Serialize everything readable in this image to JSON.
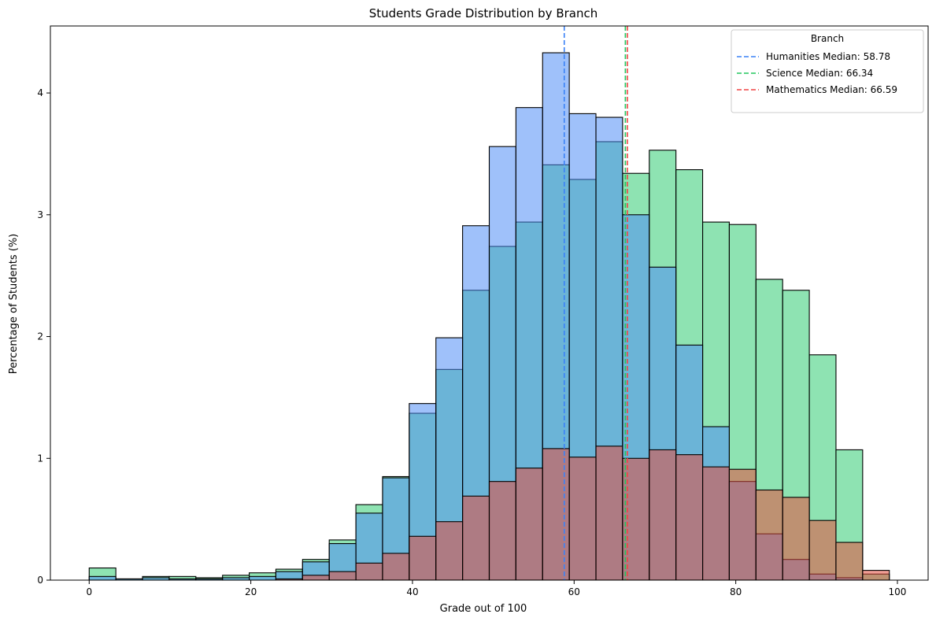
{
  "chart_data": {
    "type": "bar",
    "title": "Students Grade Distribution by Branch",
    "xlabel": "Grade out of 100",
    "ylabel": "Percentage of Students (%)",
    "xlim": [
      -4.8,
      103.8
    ],
    "ylim": [
      0,
      4.55
    ],
    "xticks": [
      0,
      20,
      40,
      60,
      80,
      100
    ],
    "yticks": [
      0,
      1,
      2,
      3,
      4
    ],
    "bin_start": 0,
    "bin_width": 3.3,
    "legend": {
      "title": "Branch",
      "position": "top-right",
      "entries": [
        "Humanities Median: 58.78",
        "Science Median: 66.34",
        "Mathematics Median: 66.59"
      ]
    },
    "series": [
      {
        "name": "Science",
        "color": "#2ecc71",
        "values": [
          0.1,
          0.01,
          0.03,
          0.03,
          0.02,
          0.04,
          0.06,
          0.09,
          0.17,
          0.33,
          0.62,
          0.85,
          1.37,
          1.73,
          2.38,
          2.74,
          2.94,
          3.41,
          3.29,
          3.6,
          3.34,
          3.53,
          3.37,
          2.94,
          2.92,
          2.47,
          2.38,
          1.85,
          1.07,
          0.05
        ]
      },
      {
        "name": "Humanities",
        "color": "#4d8cf5",
        "values": [
          0.03,
          0.01,
          0.02,
          0.01,
          0.01,
          0.02,
          0.03,
          0.07,
          0.15,
          0.3,
          0.55,
          0.84,
          1.45,
          1.99,
          2.91,
          3.56,
          3.88,
          4.33,
          3.83,
          3.8,
          3.0,
          2.57,
          1.93,
          1.26,
          0.81,
          0.38,
          0.17,
          0.05,
          0.02,
          0.0
        ]
      },
      {
        "name": "Mathematics",
        "color": "#e74c3c",
        "values": [
          0.0,
          0.0,
          0.0,
          0.0,
          0.0,
          0.0,
          0.0,
          0.01,
          0.04,
          0.07,
          0.14,
          0.22,
          0.36,
          0.48,
          0.69,
          0.81,
          0.92,
          1.08,
          1.01,
          1.1,
          1.0,
          1.07,
          1.03,
          0.93,
          0.91,
          0.74,
          0.68,
          0.49,
          0.31,
          0.08
        ]
      }
    ],
    "medians": [
      {
        "name": "Humanities",
        "value": 58.78,
        "color": "#3b82f6"
      },
      {
        "name": "Science",
        "value": 66.34,
        "color": "#22c55e"
      },
      {
        "name": "Mathematics",
        "value": 66.59,
        "color": "#ef4444"
      }
    ]
  }
}
